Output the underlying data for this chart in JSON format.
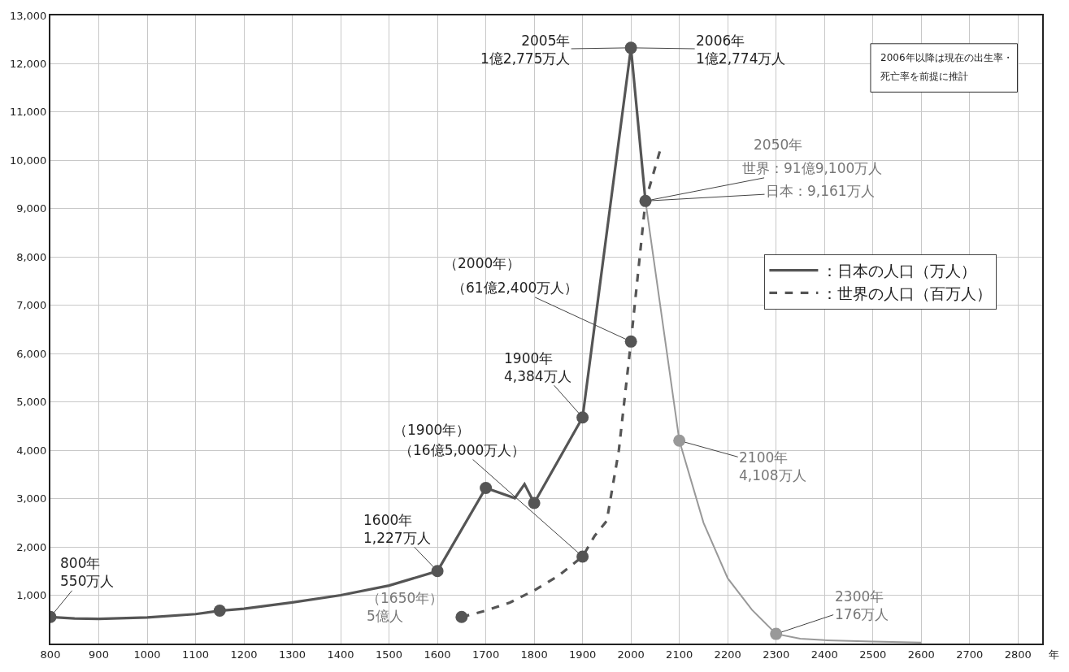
{
  "chart_data": {
    "type": "line",
    "xlabel": "年",
    "xlim": [
      800,
      2850
    ],
    "xticks": [
      800,
      900,
      1000,
      1100,
      1200,
      1300,
      1400,
      1500,
      1600,
      1700,
      1800,
      1900,
      2000,
      2100,
      2200,
      2300,
      2400,
      2500,
      2600,
      2700,
      2800
    ],
    "ylim": [
      0,
      13000
    ],
    "yticks": [
      {
        "value": 1000,
        "label": "1,000"
      },
      {
        "value": 2000,
        "label": "2,000"
      },
      {
        "value": 3000,
        "label": "3,000"
      },
      {
        "value": 4000,
        "label": "4,000"
      },
      {
        "value": 5000,
        "label": "5,000"
      },
      {
        "value": 6000,
        "label": "6,000"
      },
      {
        "value": 7000,
        "label": "7,000"
      },
      {
        "value": 8000,
        "label": "8,000"
      },
      {
        "value": 9000,
        "label": "9,000"
      },
      {
        "value": 10000,
        "label": "10,000"
      },
      {
        "value": 11000,
        "label": "11,000"
      },
      {
        "value": 12000,
        "label": "12,000"
      },
      {
        "value": 13000,
        "label": "13,000"
      }
    ],
    "grid": true,
    "legend": "right",
    "series": [
      {
        "name": "：日本の人口（万人）",
        "color": "#555555",
        "line_style": "solid",
        "x": [
          800,
          850,
          900,
          1000,
          1100,
          1150,
          1200,
          1300,
          1400,
          1500,
          1600,
          1700,
          1760,
          1780,
          1800,
          1900,
          2000,
          2030
        ],
        "values": [
          550,
          520,
          510,
          540,
          610,
          680,
          720,
          850,
          1000,
          1200,
          1500,
          3220,
          3010,
          3300,
          2910,
          4680,
          12330,
          9160
        ]
      },
      {
        "color": "#999999",
        "line_style": "solid",
        "x": [
          2030,
          2100,
          2150,
          2200,
          2250,
          2300,
          2350,
          2400,
          2500,
          2600
        ],
        "values": [
          9160,
          4200,
          2500,
          1350,
          700,
          200,
          100,
          70,
          40,
          20
        ]
      },
      {
        "name": "：世界の人口（百万人）",
        "color": "#555555",
        "line_style": "dashed",
        "x": [
          1650,
          1700,
          1750,
          1800,
          1850,
          1900,
          1925,
          1950,
          1975,
          2000,
          2015,
          2030,
          2060
        ],
        "values": [
          550,
          680,
          850,
          1100,
          1400,
          1800,
          2230,
          2540,
          4000,
          6250,
          7700,
          9160,
          10200
        ]
      },
      {
        "type": "scatter",
        "color": "#555555",
        "marker": "circle",
        "x": [
          800,
          1150,
          1600,
          1700,
          1800,
          1900,
          2000,
          2030
        ],
        "values": [
          550,
          680,
          1500,
          3220,
          2910,
          4680,
          12330,
          9160
        ]
      },
      {
        "type": "scatter",
        "color": "#999999",
        "marker": "circle",
        "x": [
          2100,
          2300
        ],
        "values": [
          4200,
          200
        ]
      },
      {
        "type": "scatter",
        "color": "#555555",
        "marker": "circle",
        "x": [
          1650,
          1900,
          2000
        ],
        "values": [
          550,
          1800,
          6250
        ]
      }
    ],
    "annotations": [
      {
        "text": "800年\n550万人",
        "x": 800,
        "y": 550
      },
      {
        "text": "1600年\n1,227万人",
        "x": 1600,
        "y": 1500
      },
      "（1900年）",
      {
        "text": "（16億5,000万人）",
        "x": 1900,
        "y": 1800
      },
      {
        "text": "1900年\n4,384万人",
        "x": 1900,
        "y": 4680
      },
      "（2000年）",
      {
        "text": "（61億2,400万人）",
        "x": 2000,
        "y": 6250
      },
      {
        "text": "2005年\n1億2,775万人",
        "x": 2000,
        "y": 12330
      },
      {
        "text": "2006年\n1億2,774万人",
        "x": 2000,
        "y": 12330
      },
      "2050年",
      {
        "text": "世界：91億9,100万人",
        "x": 2030,
        "y": 9160
      },
      {
        "text": "日本：9,161万人",
        "x": 2030,
        "y": 9160
      },
      {
        "text": "2100年\n4,108万人",
        "x": 2100,
        "y": 4200
      },
      {
        "text": "2300年\n176万人",
        "x": 2300,
        "y": 200
      },
      {
        "text": "（1650年）\n5億人",
        "x": 1650,
        "y": 550
      },
      "2006年以降は現在の出生率・",
      "死亡率を前提に推計"
    ]
  }
}
